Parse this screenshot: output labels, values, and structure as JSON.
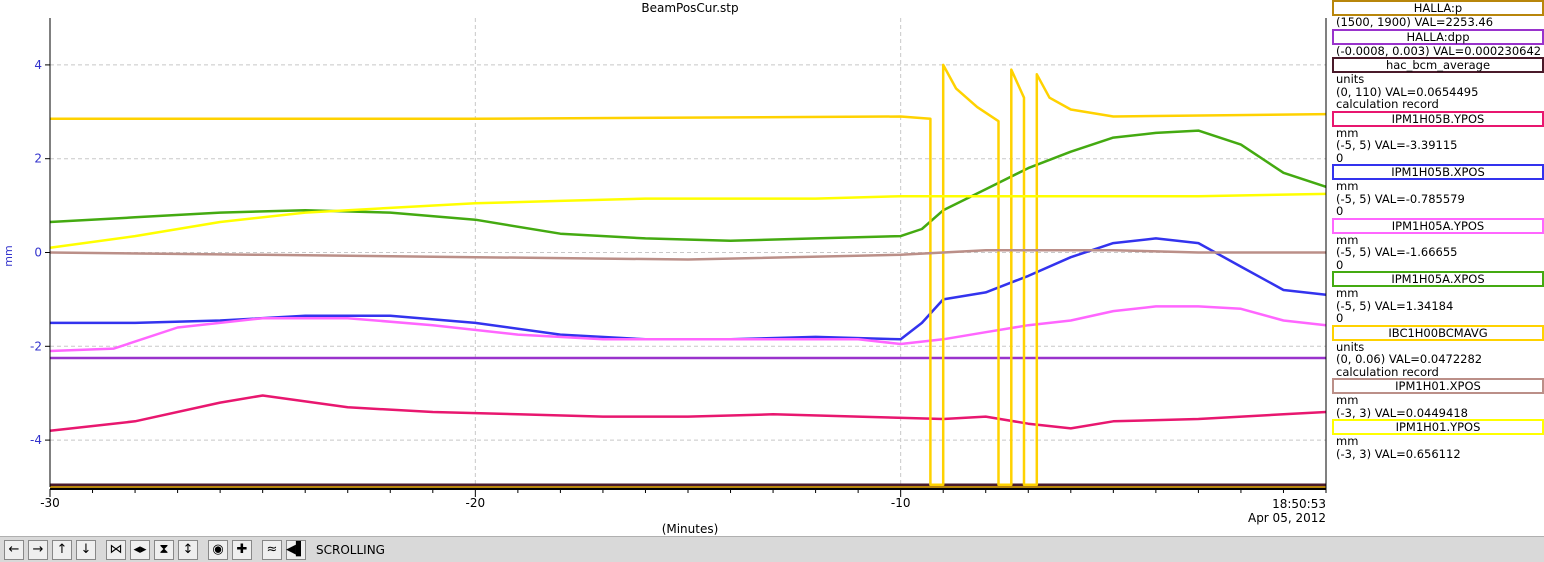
{
  "chart_data": {
    "type": "line",
    "title": "BeamPosCur.stp",
    "xlabel": "(Minutes)",
    "ylabel": "mm",
    "xlim": [
      -30,
      0
    ],
    "ylim": [
      -5,
      5
    ],
    "x_ticks": [
      -30,
      -20,
      -10
    ],
    "y_ticks": [
      -4,
      -2,
      0,
      2,
      4
    ],
    "end_time": "18:50:53",
    "end_date": "Apr 05, 2012",
    "grid": true,
    "legend_position": "right",
    "series": [
      {
        "name": "HALLA:p",
        "color": "#b8860b",
        "points": [
          [
            -30,
            -5.0
          ],
          [
            0,
            -5.0
          ]
        ]
      },
      {
        "name": "HALLA:dpp",
        "color": "#9933cc",
        "points": [
          [
            -30,
            -2.25
          ],
          [
            0,
            -2.25
          ]
        ]
      },
      {
        "name": "hac_bcm_average",
        "color": "#4a1a2a",
        "points": [
          [
            -30,
            -4.95
          ],
          [
            0,
            -4.95
          ]
        ]
      },
      {
        "name": "IPM1H05B.YPOS",
        "color": "#e8176f",
        "points": [
          [
            -30,
            -3.8
          ],
          [
            -28,
            -3.6
          ],
          [
            -26,
            -3.2
          ],
          [
            -25,
            -3.05
          ],
          [
            -23,
            -3.3
          ],
          [
            -21,
            -3.4
          ],
          [
            -19,
            -3.45
          ],
          [
            -17,
            -3.5
          ],
          [
            -15,
            -3.5
          ],
          [
            -13,
            -3.45
          ],
          [
            -11,
            -3.5
          ],
          [
            -9,
            -3.55
          ],
          [
            -8,
            -3.5
          ],
          [
            -7,
            -3.65
          ],
          [
            -6,
            -3.75
          ],
          [
            -5,
            -3.6
          ],
          [
            -3,
            -3.55
          ],
          [
            -1,
            -3.45
          ],
          [
            0,
            -3.4
          ]
        ]
      },
      {
        "name": "IPM1H05B.XPOS",
        "color": "#3333ee",
        "points": [
          [
            -30,
            -1.5
          ],
          [
            -28,
            -1.5
          ],
          [
            -26,
            -1.45
          ],
          [
            -24,
            -1.35
          ],
          [
            -22,
            -1.35
          ],
          [
            -20,
            -1.5
          ],
          [
            -18,
            -1.75
          ],
          [
            -16,
            -1.85
          ],
          [
            -14,
            -1.85
          ],
          [
            -12,
            -1.8
          ],
          [
            -10,
            -1.85
          ],
          [
            -9.5,
            -1.5
          ],
          [
            -9,
            -1.0
          ],
          [
            -8,
            -0.85
          ],
          [
            -7,
            -0.5
          ],
          [
            -6,
            -0.1
          ],
          [
            -5,
            0.2
          ],
          [
            -4,
            0.3
          ],
          [
            -3,
            0.2
          ],
          [
            -2,
            -0.3
          ],
          [
            -1,
            -0.8
          ],
          [
            0,
            -0.9
          ]
        ]
      },
      {
        "name": "IPM1H05A.YPOS",
        "color": "#ff66ff",
        "points": [
          [
            -30,
            -2.1
          ],
          [
            -28.5,
            -2.05
          ],
          [
            -27,
            -1.6
          ],
          [
            -25,
            -1.4
          ],
          [
            -23,
            -1.4
          ],
          [
            -21,
            -1.55
          ],
          [
            -19,
            -1.75
          ],
          [
            -17,
            -1.85
          ],
          [
            -15,
            -1.85
          ],
          [
            -13,
            -1.85
          ],
          [
            -11,
            -1.85
          ],
          [
            -10,
            -1.95
          ],
          [
            -9,
            -1.85
          ],
          [
            -8,
            -1.7
          ],
          [
            -7,
            -1.55
          ],
          [
            -6,
            -1.45
          ],
          [
            -5,
            -1.25
          ],
          [
            -4,
            -1.15
          ],
          [
            -3,
            -1.15
          ],
          [
            -2,
            -1.2
          ],
          [
            -1,
            -1.45
          ],
          [
            0,
            -1.55
          ]
        ]
      },
      {
        "name": "IPM1H05A.XPOS",
        "color": "#44aa11",
        "points": [
          [
            -30,
            0.65
          ],
          [
            -28,
            0.75
          ],
          [
            -26,
            0.85
          ],
          [
            -24,
            0.9
          ],
          [
            -22,
            0.85
          ],
          [
            -20,
            0.7
          ],
          [
            -18,
            0.4
          ],
          [
            -16,
            0.3
          ],
          [
            -14,
            0.25
          ],
          [
            -12,
            0.3
          ],
          [
            -10,
            0.35
          ],
          [
            -9.5,
            0.5
          ],
          [
            -9,
            0.9
          ],
          [
            -8,
            1.35
          ],
          [
            -7,
            1.8
          ],
          [
            -6,
            2.15
          ],
          [
            -5,
            2.45
          ],
          [
            -4,
            2.55
          ],
          [
            -3,
            2.6
          ],
          [
            -2,
            2.3
          ],
          [
            -1,
            1.7
          ],
          [
            0,
            1.4
          ]
        ]
      },
      {
        "name": "IBC1H00BCMAVG",
        "color": "#ffd200",
        "points": [
          [
            -30,
            2.85
          ],
          [
            -20,
            2.85
          ],
          [
            -10,
            2.9
          ],
          [
            -9.3,
            2.85
          ],
          [
            -9.3,
            -4.95
          ],
          [
            -9.0,
            -4.95
          ],
          [
            -9.0,
            4.0
          ],
          [
            -8.7,
            3.5
          ],
          [
            -8.2,
            3.1
          ],
          [
            -7.7,
            2.8
          ],
          [
            -7.7,
            -4.95
          ],
          [
            -7.4,
            -4.95
          ],
          [
            -7.4,
            3.9
          ],
          [
            -7.1,
            3.3
          ],
          [
            -7.1,
            -4.95
          ],
          [
            -6.8,
            -4.95
          ],
          [
            -6.8,
            3.8
          ],
          [
            -6.5,
            3.3
          ],
          [
            -6.0,
            3.05
          ],
          [
            -5,
            2.9
          ],
          [
            0,
            2.95
          ]
        ]
      },
      {
        "name": "IPM1H01.XPOS",
        "color": "#bb8f88",
        "points": [
          [
            -30,
            0.0
          ],
          [
            -25,
            -0.05
          ],
          [
            -20,
            -0.1
          ],
          [
            -15,
            -0.15
          ],
          [
            -10,
            -0.05
          ],
          [
            -8,
            0.05
          ],
          [
            -5,
            0.05
          ],
          [
            -3,
            0.0
          ],
          [
            0,
            0.0
          ]
        ]
      },
      {
        "name": "IPM1H01.YPOS",
        "color": "#ffff00",
        "points": [
          [
            -30,
            0.1
          ],
          [
            -28,
            0.35
          ],
          [
            -26,
            0.65
          ],
          [
            -24,
            0.85
          ],
          [
            -22,
            0.95
          ],
          [
            -20,
            1.05
          ],
          [
            -18,
            1.1
          ],
          [
            -16,
            1.15
          ],
          [
            -14,
            1.15
          ],
          [
            -12,
            1.15
          ],
          [
            -10,
            1.2
          ],
          [
            -7,
            1.2
          ],
          [
            -5,
            1.2
          ],
          [
            -3,
            1.2
          ],
          [
            0,
            1.25
          ]
        ]
      }
    ]
  },
  "legend": [
    {
      "name": "HALLA:p",
      "color": "#b8860b",
      "lines": [
        "(1500, 1900)  VAL=2253.46"
      ]
    },
    {
      "name": "HALLA:dpp",
      "color": "#9933cc",
      "lines": [
        "(-0.0008, 0.003)  VAL=0.000230642"
      ]
    },
    {
      "name": "hac_bcm_average",
      "color": "#4a1a2a",
      "lines": [
        "units",
        "(0, 110) VAL=0.0654495",
        "calculation record"
      ]
    },
    {
      "name": "IPM1H05B.YPOS",
      "color": "#e8176f",
      "lines": [
        "mm",
        "(-5, 5) VAL=-3.39115",
        "0"
      ]
    },
    {
      "name": "IPM1H05B.XPOS",
      "color": "#3333ee",
      "lines": [
        "mm",
        "(-5, 5) VAL=-0.785579",
        "0"
      ]
    },
    {
      "name": "IPM1H05A.YPOS",
      "color": "#ff66ff",
      "lines": [
        "mm",
        "(-5, 5) VAL=-1.66655",
        "0"
      ]
    },
    {
      "name": "IPM1H05A.XPOS",
      "color": "#44aa11",
      "lines": [
        "mm",
        "(-5, 5) VAL=1.34184",
        "0"
      ]
    },
    {
      "name": "IBC1H00BCMAVG",
      "color": "#ffd200",
      "lines": [
        "units",
        "(0, 0.06) VAL=0.0472282",
        "calculation record"
      ]
    },
    {
      "name": "IPM1H01.XPOS",
      "color": "#bb8f88",
      "lines": [
        "mm",
        "(-3, 3) VAL=0.0449418"
      ]
    },
    {
      "name": "IPM1H01.YPOS",
      "color": "#ffff00",
      "lines": [
        "mm",
        "(-3, 3) VAL=0.656112"
      ]
    }
  ],
  "toolbar": {
    "mode_label": "SCROLLING",
    "buttons": [
      {
        "name": "scroll-left-button",
        "icon": "arrow-left-icon",
        "glyph": "←"
      },
      {
        "name": "scroll-right-button",
        "icon": "arrow-right-icon",
        "glyph": "→"
      },
      {
        "name": "scroll-up-button",
        "icon": "arrow-up-icon",
        "glyph": "↑"
      },
      {
        "name": "scroll-down-button",
        "icon": "arrow-down-icon",
        "glyph": "↓"
      },
      {
        "name": "zoom-in-x-button",
        "icon": "zoom-in-x-icon",
        "glyph": "⋈"
      },
      {
        "name": "zoom-out-x-button",
        "icon": "zoom-out-x-icon",
        "glyph": "◂▸"
      },
      {
        "name": "zoom-in-y-button",
        "icon": "zoom-in-y-icon",
        "glyph": "⧗"
      },
      {
        "name": "zoom-out-y-button",
        "icon": "zoom-out-y-icon",
        "glyph": "↕"
      },
      {
        "name": "center-button",
        "icon": "target-icon",
        "glyph": "◉"
      },
      {
        "name": "add-button",
        "icon": "plus-icon",
        "glyph": "✚"
      },
      {
        "name": "auto-scale-button",
        "icon": "autoscale-icon",
        "glyph": "≈"
      },
      {
        "name": "jump-to-end-button",
        "icon": "jump-end-icon",
        "glyph": "◀▌"
      }
    ]
  }
}
